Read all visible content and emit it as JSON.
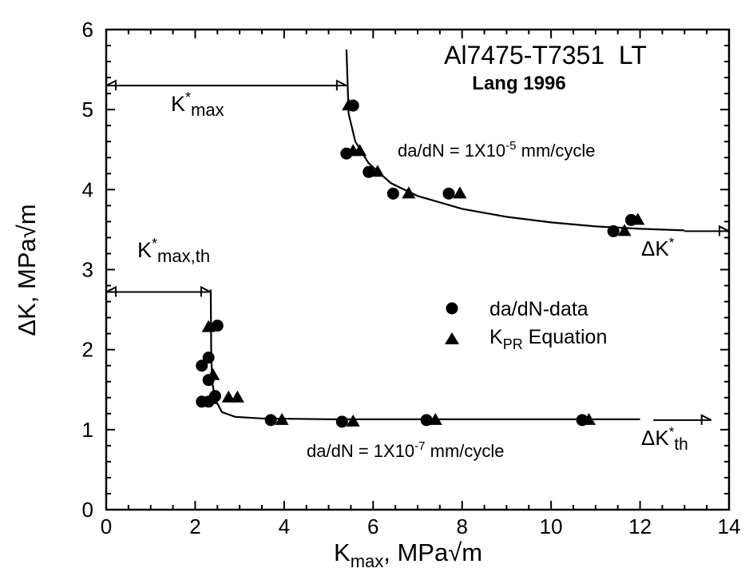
{
  "chart_data": {
    "type": "scatter",
    "title": "Al7475-T7351  LT",
    "subtitle": "Lang 1996",
    "xlabel": {
      "main": "K",
      "sub": "max",
      "rest": ", MPa√m"
    },
    "ylabel": "ΔK, MPa√m",
    "xlim": [
      0,
      14
    ],
    "ylim": [
      0,
      6
    ],
    "x_ticks": [
      0,
      2,
      4,
      6,
      8,
      10,
      12,
      14
    ],
    "y_ticks": [
      0,
      1,
      2,
      3,
      4,
      5,
      6
    ],
    "x_tick_labels": [
      "0",
      "2",
      "4",
      "6",
      "8",
      "10",
      "12",
      "14"
    ],
    "y_tick_labels": [
      "0",
      "1",
      "2",
      "3",
      "4",
      "5",
      "6"
    ],
    "grid": false,
    "legend": {
      "position": "center-right",
      "entries": [
        {
          "marker": "circle",
          "label_main": "da/dN-data",
          "label_sub": ""
        },
        {
          "marker": "triangle",
          "label_main": "K",
          "label_sub": "PR",
          "label_rest": " Equation"
        }
      ]
    },
    "series": [
      {
        "marker": "circle",
        "points": [
          [
            5.55,
            5.05
          ],
          [
            5.4,
            4.45
          ],
          [
            5.9,
            4.22
          ],
          [
            6.45,
            3.95
          ],
          [
            7.7,
            3.95
          ],
          [
            11.4,
            3.48
          ],
          [
            11.8,
            3.62
          ],
          [
            2.15,
            1.8
          ],
          [
            2.3,
            1.9
          ],
          [
            2.3,
            1.62
          ],
          [
            2.15,
            1.35
          ],
          [
            2.3,
            1.35
          ],
          [
            2.5,
            2.3
          ],
          [
            2.45,
            1.42
          ],
          [
            3.7,
            1.12
          ],
          [
            5.3,
            1.1
          ],
          [
            7.2,
            1.12
          ],
          [
            10.7,
            1.12
          ]
        ]
      },
      {
        "marker": "triangle",
        "points": [
          [
            5.45,
            5.05
          ],
          [
            5.55,
            4.48
          ],
          [
            5.7,
            4.48
          ],
          [
            6.1,
            4.22
          ],
          [
            6.8,
            3.95
          ],
          [
            7.95,
            3.95
          ],
          [
            11.65,
            3.48
          ],
          [
            11.95,
            3.62
          ],
          [
            2.3,
            2.28
          ],
          [
            2.4,
            1.68
          ],
          [
            2.35,
            1.38
          ],
          [
            2.75,
            1.4
          ],
          [
            2.95,
            1.4
          ],
          [
            3.95,
            1.12
          ],
          [
            5.55,
            1.1
          ],
          [
            7.4,
            1.12
          ],
          [
            10.85,
            1.12
          ]
        ]
      }
    ],
    "curves": [
      {
        "name": "1e-5",
        "points": [
          [
            5.4,
            5.75
          ],
          [
            5.45,
            4.95
          ],
          [
            5.6,
            4.6
          ],
          [
            5.9,
            4.33
          ],
          [
            6.4,
            4.08
          ],
          [
            7.0,
            3.92
          ],
          [
            8.0,
            3.76
          ],
          [
            9.0,
            3.66
          ],
          [
            10.0,
            3.59
          ],
          [
            11.0,
            3.54
          ],
          [
            12.0,
            3.51
          ],
          [
            13.0,
            3.49
          ]
        ]
      },
      {
        "name": "1e-7",
        "points": [
          [
            2.35,
            2.75
          ],
          [
            2.36,
            2.0
          ],
          [
            2.38,
            1.6
          ],
          [
            2.45,
            1.38
          ],
          [
            2.6,
            1.22
          ],
          [
            2.9,
            1.16
          ],
          [
            3.5,
            1.14
          ],
          [
            5.0,
            1.13
          ],
          [
            8.0,
            1.13
          ],
          [
            12.0,
            1.13
          ]
        ]
      }
    ],
    "annotations": [
      {
        "id": "kmax-star",
        "text_main": "K",
        "text_sup": "*",
        "text_sub": "max",
        "arrow": {
          "x1": 0.0,
          "x2": 5.4,
          "y": 5.3
        }
      },
      {
        "id": "kmax-th-star",
        "text_main": "K",
        "text_sup": "*",
        "text_sub": "max,th",
        "arrow": {
          "x1": 0.0,
          "x2": 2.35,
          "y": 2.72
        }
      },
      {
        "id": "dadn-5",
        "text": "da/dN = 1X10",
        "text_sup": "-5",
        "text_rest": " mm/cycle"
      },
      {
        "id": "dadn-7",
        "text": "da/dN = 1X10",
        "text_sup": "-7",
        "text_rest": " mm/cycle"
      },
      {
        "id": "dk-star",
        "text_main": "ΔK",
        "text_sup": "*",
        "text_sub": "",
        "arrow": {
          "x1": 13.0,
          "x2": 14.0,
          "y": 3.48
        }
      },
      {
        "id": "dk-th-star",
        "text_main": "ΔK",
        "text_sup": "*",
        "text_sub": "th",
        "arrow": {
          "x1": 12.3,
          "x2": 13.6,
          "y": 1.12
        }
      }
    ]
  }
}
